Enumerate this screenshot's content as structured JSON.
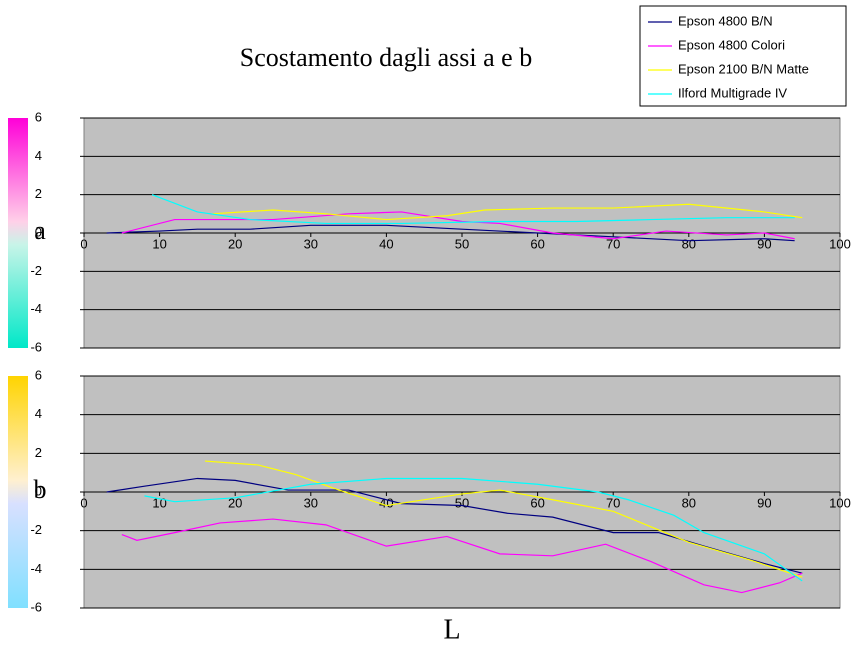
{
  "chart_data": [
    {
      "type": "line",
      "title": "Scostamento dagli assi a e b",
      "ylabel": "a",
      "xlim": [
        0,
        100
      ],
      "xticks": [
        0,
        10,
        20,
        30,
        40,
        50,
        60,
        70,
        80,
        90,
        100
      ],
      "ylim": [
        -6,
        6
      ],
      "yticks": [
        -6,
        -4,
        -2,
        0,
        2,
        4,
        6
      ],
      "grid": true,
      "legend": "top-right",
      "series": [
        {
          "name": "Epson 4800 B/N",
          "color": "#000080",
          "x": [
            3,
            10,
            15,
            22,
            30,
            40,
            50,
            60,
            70,
            80,
            90,
            94
          ],
          "values": [
            0,
            0.1,
            0.2,
            0.2,
            0.4,
            0.4,
            0.2,
            0,
            -0.2,
            -0.4,
            -0.3,
            -0.4
          ]
        },
        {
          "name": "Epson 4800 Colori",
          "color": "#ff00ff",
          "x": [
            5,
            12,
            18,
            25,
            35,
            42,
            50,
            55,
            62,
            70,
            77,
            85,
            90,
            94
          ],
          "values": [
            0,
            0.7,
            0.7,
            0.7,
            1.0,
            1.1,
            0.6,
            0.5,
            0,
            -0.3,
            0.1,
            -0.1,
            0,
            -0.3
          ]
        },
        {
          "name": "Epson 2100 B/N Matte",
          "color": "#ffff00",
          "x": [
            17,
            25,
            32,
            40,
            48,
            53,
            62,
            70,
            80,
            90,
            95
          ],
          "values": [
            1.0,
            1.2,
            1.0,
            0.7,
            0.9,
            1.2,
            1.3,
            1.3,
            1.5,
            1.1,
            0.8
          ]
        },
        {
          "name": "Ilford Multigrade IV",
          "color": "#00ffff",
          "x": [
            9,
            15,
            22,
            32,
            42,
            55,
            65,
            75,
            85,
            94
          ],
          "values": [
            2.0,
            1.1,
            0.7,
            0.5,
            0.5,
            0.6,
            0.6,
            0.7,
            0.8,
            0.8
          ]
        }
      ]
    },
    {
      "type": "line",
      "ylabel": "b",
      "xlabel": "L",
      "xlim": [
        0,
        100
      ],
      "xticks": [
        0,
        10,
        20,
        30,
        40,
        50,
        60,
        70,
        80,
        90,
        100
      ],
      "ylim": [
        -6,
        6
      ],
      "yticks": [
        -6,
        -4,
        -2,
        0,
        2,
        4,
        6
      ],
      "grid": true,
      "series": [
        {
          "color": "#000080",
          "x": [
            3,
            8,
            15,
            20,
            27,
            35,
            42,
            50,
            56,
            62,
            70,
            76,
            82,
            90,
            95
          ],
          "values": [
            0,
            0.3,
            0.7,
            0.6,
            0.1,
            0.1,
            -0.6,
            -0.7,
            -1.1,
            -1.3,
            -2.1,
            -2.1,
            -2.8,
            -3.7,
            -4.2
          ]
        },
        {
          "color": "#ff00ff",
          "x": [
            5,
            7,
            12,
            18,
            25,
            32,
            40,
            48,
            55,
            62,
            69,
            75,
            82,
            87,
            92,
            95
          ],
          "values": [
            -2.2,
            -2.5,
            -2.1,
            -1.6,
            -1.4,
            -1.7,
            -2.8,
            -2.3,
            -3.2,
            -3.3,
            -2.7,
            -3.6,
            -4.8,
            -5.2,
            -4.7,
            -4.2
          ]
        },
        {
          "color": "#ffff00",
          "x": [
            16,
            23,
            28,
            33,
            40,
            50,
            55,
            62,
            70,
            75,
            80,
            88,
            95
          ],
          "values": [
            1.6,
            1.4,
            0.9,
            0.2,
            -0.7,
            -0.1,
            0.1,
            -0.4,
            -1.0,
            -1.8,
            -2.6,
            -3.5,
            -4.4
          ]
        },
        {
          "color": "#00ffff",
          "x": [
            8,
            12,
            20,
            30,
            40,
            50,
            60,
            68,
            72,
            78,
            82,
            90,
            95
          ],
          "values": [
            -0.2,
            -0.5,
            -0.3,
            0.4,
            0.7,
            0.7,
            0.4,
            0,
            -0.4,
            -1.2,
            -2.1,
            -3.2,
            -4.6
          ]
        }
      ]
    }
  ]
}
